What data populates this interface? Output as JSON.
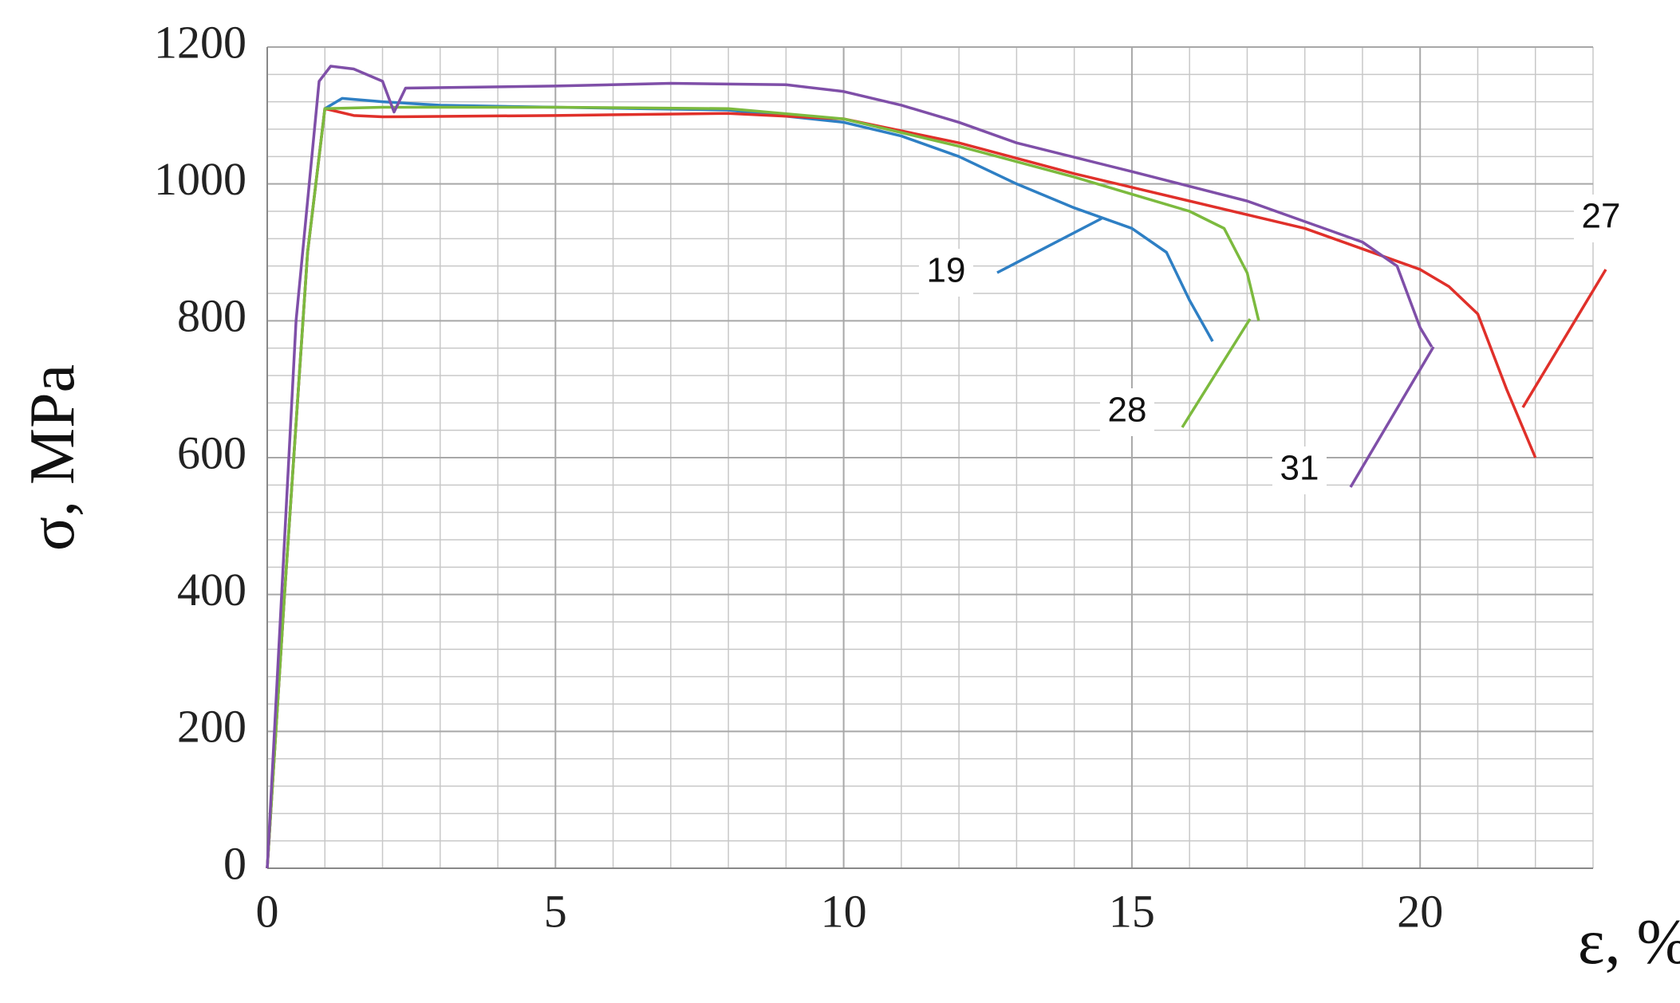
{
  "chart_data": {
    "type": "line",
    "x_label": "ε, %",
    "y_label": "σ, MPa",
    "xlim": [
      0,
      23
    ],
    "ylim": [
      0,
      1200
    ],
    "xticks": [
      0,
      5,
      10,
      15,
      20
    ],
    "yticks": [
      0,
      200,
      400,
      600,
      800,
      1000,
      1200
    ],
    "grid": true,
    "series": [
      {
        "name": "19",
        "color": "#2e7fc4",
        "x": [
          0,
          0.3,
          0.7,
          1,
          1.3,
          2,
          3,
          5,
          8,
          10,
          11,
          12,
          13,
          14,
          15,
          15.6,
          16,
          16.4
        ],
        "values": [
          0,
          400,
          900,
          1110,
          1125,
          1120,
          1115,
          1112,
          1108,
          1090,
          1070,
          1040,
          1000,
          965,
          935,
          900,
          830,
          770
        ]
      },
      {
        "name": "27",
        "color": "#e0302a",
        "x": [
          0,
          0.3,
          0.7,
          1,
          1.5,
          2,
          5,
          8,
          10,
          12,
          14,
          16,
          18,
          19,
          20,
          20.5,
          21,
          21.5,
          22
        ],
        "values": [
          0,
          400,
          900,
          1110,
          1100,
          1098,
          1100,
          1103,
          1095,
          1060,
          1015,
          975,
          935,
          905,
          875,
          850,
          810,
          700,
          600
        ]
      },
      {
        "name": "28",
        "color": "#7cba3e",
        "x": [
          0,
          0.3,
          0.7,
          1,
          2,
          5,
          8,
          10,
          12,
          14,
          15,
          16,
          16.6,
          17,
          17.2
        ],
        "values": [
          0,
          400,
          900,
          1110,
          1112,
          1112,
          1110,
          1095,
          1055,
          1010,
          985,
          960,
          935,
          870,
          800
        ]
      },
      {
        "name": "31",
        "color": "#7f4fa8",
        "x": [
          0,
          0.5,
          0.9,
          1.1,
          1.5,
          2,
          2.2,
          2.4,
          5,
          7,
          9,
          10,
          11,
          12,
          13,
          15,
          17,
          19,
          19.6,
          20,
          20.2
        ],
        "values": [
          0,
          800,
          1150,
          1172,
          1168,
          1150,
          1105,
          1140,
          1143,
          1147,
          1145,
          1135,
          1115,
          1090,
          1060,
          1018,
          975,
          915,
          880,
          790,
          762
        ]
      }
    ]
  }
}
